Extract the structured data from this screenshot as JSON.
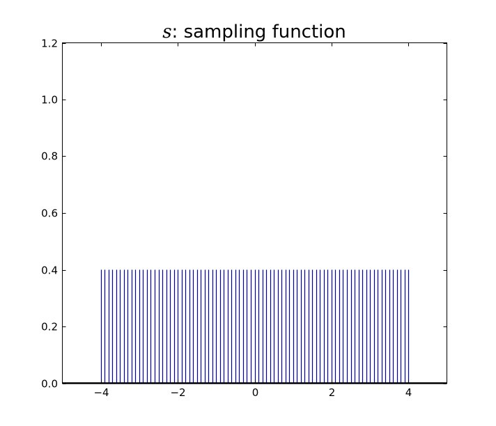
{
  "chart_data": {
    "type": "stem",
    "title_var": "s",
    "title_rest": ": sampling function",
    "xlabel": "",
    "ylabel": "",
    "xlim": [
      -5,
      5
    ],
    "ylim": [
      0,
      1.2
    ],
    "xticks": [
      -4,
      -2,
      0,
      2,
      4
    ],
    "xtick_labels": [
      "−4",
      "−2",
      "0",
      "2",
      "4"
    ],
    "yticks": [
      0,
      0.2,
      0.4,
      0.6,
      0.8,
      1.0,
      1.2
    ],
    "ytick_labels": [
      "0.0",
      "0.2",
      "0.4",
      "0.6",
      "0.8",
      "1.0",
      "1.2"
    ],
    "stem_start": -4,
    "stem_end": 4,
    "stem_step": 0.1,
    "stem_value": 0.4,
    "grid": false,
    "stem_color": "#0000aa",
    "baseline_color": "#000000"
  }
}
